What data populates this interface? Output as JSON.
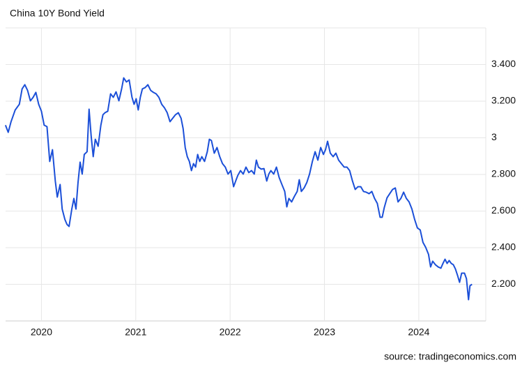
{
  "chart_data": {
    "type": "line",
    "title": "China 10Y Bond Yield",
    "source": "source: tradingeconomics.com",
    "color": "#1b4fd8",
    "grid": true,
    "xlim": [
      2019.62,
      2024.71
    ],
    "xticks": [
      2020,
      2021,
      2022,
      2023,
      2024
    ],
    "ylim": [
      2.0,
      3.6
    ],
    "yticks": [
      {
        "value": 2.2,
        "label": "2.200"
      },
      {
        "value": 2.4,
        "label": "2.400"
      },
      {
        "value": 2.6,
        "label": "2.600"
      },
      {
        "value": 2.8,
        "label": "2.800"
      },
      3,
      {
        "value": 3.2,
        "label": "3.200"
      },
      {
        "value": 3.4,
        "label": "3.400"
      }
    ],
    "x": [
      2019.619,
      2019.648,
      2019.678,
      2019.722,
      2019.766,
      2019.795,
      2019.824,
      2019.853,
      2019.883,
      2019.912,
      2019.941,
      2019.971,
      2020.0,
      2020.029,
      2020.059,
      2020.088,
      2020.117,
      2020.147,
      2020.168,
      2020.198,
      2020.22,
      2020.249,
      2020.271,
      2020.293,
      2020.322,
      2020.344,
      2020.366,
      2020.388,
      2020.41,
      2020.432,
      2020.454,
      2020.484,
      2020.505,
      2020.527,
      2020.549,
      2020.571,
      2020.601,
      2020.63,
      2020.652,
      2020.674,
      2020.703,
      2020.733,
      2020.762,
      2020.791,
      2020.821,
      2020.85,
      2020.872,
      2020.901,
      2020.93,
      2020.96,
      2020.982,
      2021.004,
      2021.026,
      2021.048,
      2021.07,
      2021.099,
      2021.128,
      2021.158,
      2021.187,
      2021.216,
      2021.245,
      2021.275,
      2021.304,
      2021.333,
      2021.363,
      2021.392,
      2021.421,
      2021.451,
      2021.48,
      2021.502,
      2021.524,
      2021.546,
      2021.568,
      2021.59,
      2021.612,
      2021.634,
      2021.656,
      2021.678,
      2021.7,
      2021.729,
      2021.758,
      2021.78,
      2021.802,
      2021.832,
      2021.861,
      2021.89,
      2021.919,
      2021.949,
      2021.978,
      2022.007,
      2022.037,
      2022.059,
      2022.081,
      2022.11,
      2022.139,
      2022.168,
      2022.198,
      2022.227,
      2022.256,
      2022.278,
      2022.3,
      2022.33,
      2022.359,
      2022.388,
      2022.41,
      2022.432,
      2022.462,
      2022.491,
      2022.52,
      2022.549,
      2022.579,
      2022.601,
      2022.623,
      2022.652,
      2022.681,
      2022.711,
      2022.733,
      2022.755,
      2022.784,
      2022.813,
      2022.842,
      2022.872,
      2022.901,
      2022.93,
      2022.96,
      2022.989,
      2023.011,
      2023.033,
      2023.062,
      2023.092,
      2023.121,
      2023.15,
      2023.179,
      2023.209,
      2023.238,
      2023.267,
      2023.297,
      2023.326,
      2023.355,
      2023.385,
      2023.414,
      2023.443,
      2023.473,
      2023.502,
      2023.531,
      2023.56,
      2023.59,
      2023.612,
      2023.634,
      2023.663,
      2023.692,
      2023.722,
      2023.751,
      2023.78,
      2023.81,
      2023.839,
      2023.868,
      2023.897,
      2023.927,
      2023.956,
      2023.985,
      2024.015,
      2024.044,
      2024.073,
      2024.103,
      2024.125,
      2024.147,
      2024.176,
      2024.205,
      2024.234,
      2024.256,
      2024.278,
      2024.3,
      2024.322,
      2024.344,
      2024.366,
      2024.388,
      2024.41,
      2024.432,
      2024.454,
      2024.484,
      2024.505,
      2024.527,
      2024.542,
      2024.564
    ],
    "values": [
      3.069,
      3.03,
      3.088,
      3.152,
      3.183,
      3.267,
      3.29,
      3.259,
      3.202,
      3.221,
      3.248,
      3.183,
      3.145,
      3.069,
      3.061,
      2.871,
      2.935,
      2.764,
      2.676,
      2.745,
      2.611,
      2.554,
      2.527,
      2.516,
      2.611,
      2.669,
      2.611,
      2.756,
      2.867,
      2.802,
      2.909,
      2.924,
      3.156,
      3.011,
      2.897,
      2.992,
      2.954,
      3.069,
      3.126,
      3.137,
      3.145,
      3.24,
      3.221,
      3.251,
      3.202,
      3.267,
      3.327,
      3.305,
      3.316,
      3.221,
      3.183,
      3.213,
      3.152,
      3.221,
      3.267,
      3.274,
      3.29,
      3.259,
      3.248,
      3.24,
      3.221,
      3.183,
      3.164,
      3.137,
      3.088,
      3.107,
      3.126,
      3.137,
      3.107,
      3.05,
      2.947,
      2.897,
      2.871,
      2.821,
      2.859,
      2.84,
      2.909,
      2.871,
      2.897,
      2.871,
      2.924,
      2.992,
      2.985,
      2.916,
      2.947,
      2.897,
      2.859,
      2.84,
      2.802,
      2.821,
      2.733,
      2.764,
      2.794,
      2.821,
      2.802,
      2.84,
      2.81,
      2.821,
      2.802,
      2.878,
      2.84,
      2.829,
      2.832,
      2.764,
      2.802,
      2.821,
      2.802,
      2.84,
      2.783,
      2.745,
      2.707,
      2.623,
      2.669,
      2.65,
      2.68,
      2.707,
      2.771,
      2.707,
      2.726,
      2.756,
      2.802,
      2.871,
      2.924,
      2.878,
      2.947,
      2.909,
      2.935,
      2.981,
      2.916,
      2.897,
      2.916,
      2.878,
      2.859,
      2.84,
      2.84,
      2.821,
      2.764,
      2.718,
      2.733,
      2.733,
      2.707,
      2.703,
      2.695,
      2.707,
      2.669,
      2.642,
      2.566,
      2.566,
      2.619,
      2.672,
      2.695,
      2.718,
      2.726,
      2.65,
      2.669,
      2.703,
      2.669,
      2.65,
      2.611,
      2.554,
      2.508,
      2.497,
      2.429,
      2.402,
      2.364,
      2.295,
      2.326,
      2.307,
      2.295,
      2.288,
      2.314,
      2.337,
      2.314,
      2.33,
      2.314,
      2.307,
      2.284,
      2.25,
      2.211,
      2.261,
      2.261,
      2.231,
      2.116,
      2.192,
      2.2
    ]
  }
}
